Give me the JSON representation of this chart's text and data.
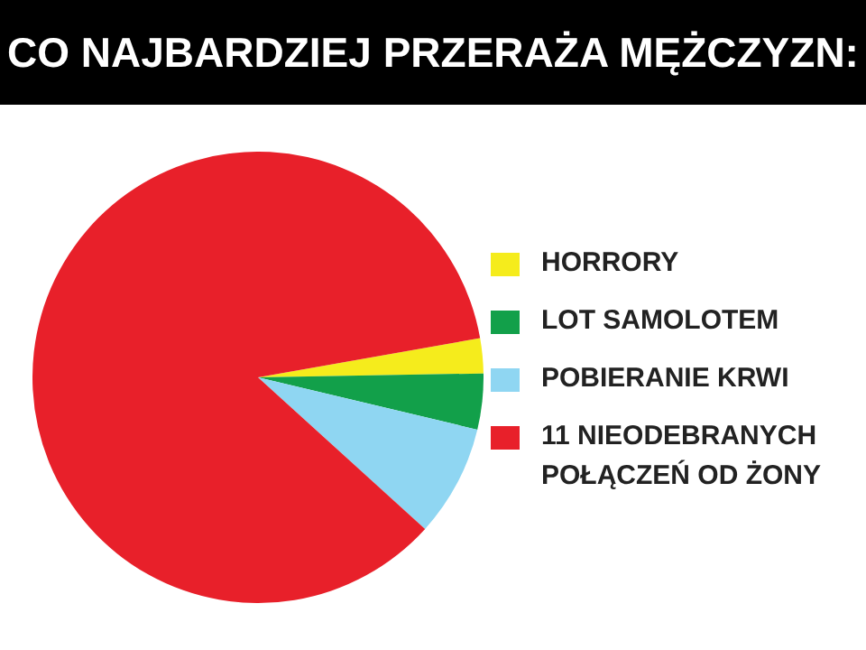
{
  "chart_data": {
    "type": "pie",
    "title": "CO NAJBARDZIEJ PRZERAŻA MĘŻCZYZN:",
    "categories": [
      "HORRORY",
      "LOT SAMOLOTEM",
      "POBIERANIE KRWI",
      "11 NIEODEBRANYCH POŁĄCZEŃ OD ŻONY"
    ],
    "values": [
      2.5,
      4,
      8,
      85.5
    ],
    "colors": [
      "#f5ec1c",
      "#12a04a",
      "#8fd6f2",
      "#e8202a"
    ],
    "legend": "right"
  }
}
